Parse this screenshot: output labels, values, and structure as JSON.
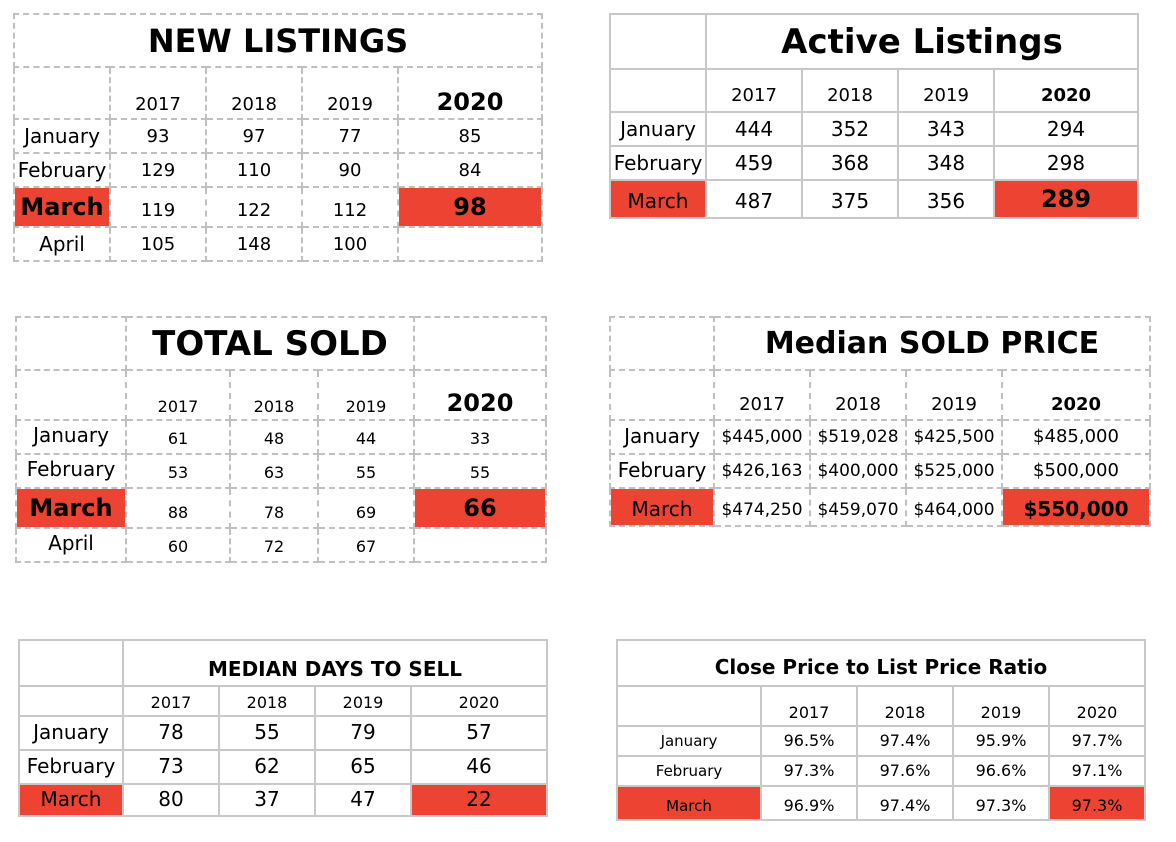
{
  "new_listings": {
    "title": "NEW LISTINGS",
    "years": [
      "2017",
      "2018",
      "2019",
      "2020"
    ],
    "rows": [
      {
        "month": "January",
        "values": [
          "93",
          "97",
          "77",
          "85"
        ]
      },
      {
        "month": "February",
        "values": [
          "129",
          "110",
          "90",
          "84"
        ]
      },
      {
        "month": "March",
        "values": [
          "119",
          "122",
          "112",
          "98"
        ]
      },
      {
        "month": "April",
        "values": [
          "105",
          "148",
          "100",
          ""
        ]
      }
    ]
  },
  "active_listings": {
    "title": "Active Listings",
    "years": [
      "2017",
      "2018",
      "2019",
      "2020"
    ],
    "rows": [
      {
        "month": "January",
        "values": [
          "444",
          "352",
          "343",
          "294"
        ]
      },
      {
        "month": "February",
        "values": [
          "459",
          "368",
          "348",
          "298"
        ]
      },
      {
        "month": "March",
        "values": [
          "487",
          "375",
          "356",
          "289"
        ]
      }
    ]
  },
  "total_sold": {
    "title": "TOTAL SOLD",
    "years": [
      "2017",
      "2018",
      "2019",
      "2020"
    ],
    "rows": [
      {
        "month": "January",
        "values": [
          "61",
          "48",
          "44",
          "33"
        ]
      },
      {
        "month": "February",
        "values": [
          "53",
          "63",
          "55",
          "55"
        ]
      },
      {
        "month": "March",
        "values": [
          "88",
          "78",
          "69",
          "66"
        ]
      },
      {
        "month": "April",
        "values": [
          "60",
          "72",
          "67",
          ""
        ]
      }
    ]
  },
  "median_sold_price": {
    "title": "Median SOLD PRICE",
    "years": [
      "2017",
      "2018",
      "2019",
      "2020"
    ],
    "rows": [
      {
        "month": "January",
        "values": [
          "$445,000",
          "$519,028",
          "$425,500",
          "$485,000"
        ]
      },
      {
        "month": "February",
        "values": [
          "$426,163",
          "$400,000",
          "$525,000",
          "$500,000"
        ]
      },
      {
        "month": "March",
        "values": [
          "$474,250",
          "$459,070",
          "$464,000",
          "$550,000"
        ]
      }
    ]
  },
  "median_days_to_sell": {
    "title": "MEDIAN DAYS TO SELL",
    "years": [
      "2017",
      "2018",
      "2019",
      "2020"
    ],
    "rows": [
      {
        "month": "January",
        "values": [
          "78",
          "55",
          "79",
          "57"
        ]
      },
      {
        "month": "February",
        "values": [
          "73",
          "62",
          "65",
          "46"
        ]
      },
      {
        "month": "March",
        "values": [
          "80",
          "37",
          "47",
          "22"
        ]
      }
    ]
  },
  "close_to_list_ratio": {
    "title": "Close Price to List Price Ratio",
    "years": [
      "2017",
      "2018",
      "2019",
      "2020"
    ],
    "rows": [
      {
        "month": "January",
        "values": [
          "96.5%",
          "97.4%",
          "95.9%",
          "97.7%"
        ]
      },
      {
        "month": "February",
        "values": [
          "97.3%",
          "97.6%",
          "96.6%",
          "97.1%"
        ]
      },
      {
        "month": "March",
        "values": [
          "96.9%",
          "97.4%",
          "97.3%",
          "97.3%"
        ]
      }
    ]
  },
  "colors": {
    "highlight": "#ec4332",
    "border": "#c8c8c8"
  }
}
